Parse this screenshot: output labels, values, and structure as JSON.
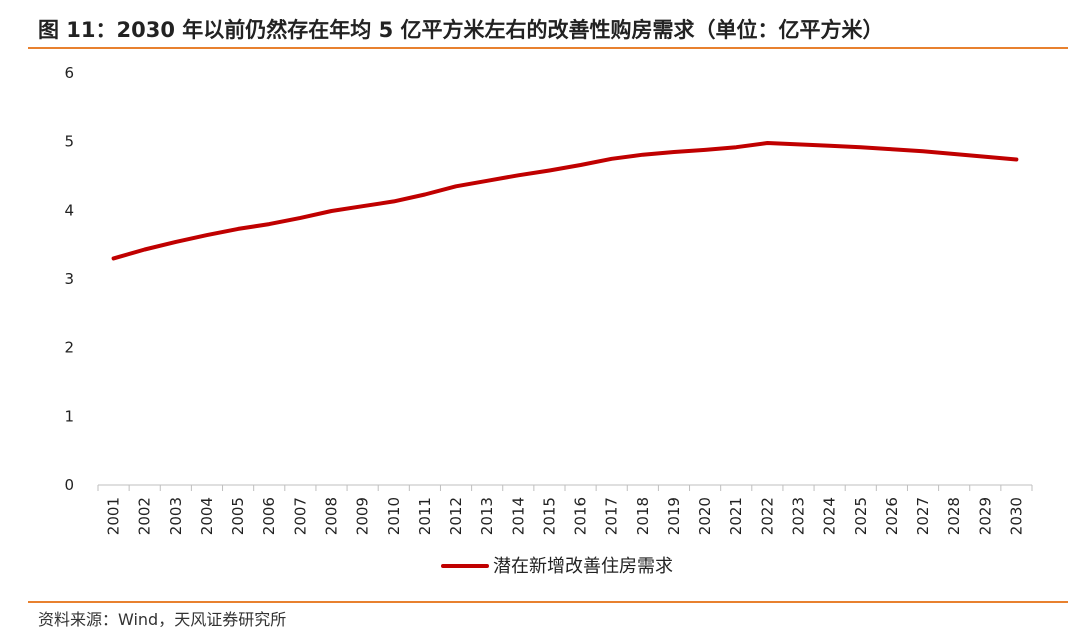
{
  "header": {
    "title": "图 11：2030 年以前仍然存在年均 5 亿平方米左右的改善性购房需求（单位：亿平方米）"
  },
  "footer": {
    "source": "资料来源：Wind，天风证券研究所"
  },
  "colors": {
    "rule": "#E8812F",
    "line": "#C00000",
    "axis": "#BFBFBF"
  },
  "chart_data": {
    "type": "line",
    "title": "",
    "xlabel": "",
    "ylabel": "",
    "ylim": [
      0,
      6
    ],
    "yticks": [
      "0",
      "1",
      "2",
      "3",
      "4",
      "5",
      "6"
    ],
    "grid": false,
    "legend_position": "bottom-center",
    "categories": [
      "2001",
      "2002",
      "2003",
      "2004",
      "2005",
      "2006",
      "2007",
      "2008",
      "2009",
      "2010",
      "2011",
      "2012",
      "2013",
      "2014",
      "2015",
      "2016",
      "2017",
      "2018",
      "2019",
      "2020",
      "2021",
      "2022",
      "2023",
      "2024",
      "2025",
      "2026",
      "2027",
      "2028",
      "2029",
      "2030"
    ],
    "series": [
      {
        "name": "潜在新增改善住房需求",
        "values": [
          3.3,
          3.43,
          3.54,
          3.64,
          3.73,
          3.8,
          3.89,
          3.99,
          4.06,
          4.13,
          4.23,
          4.35,
          4.43,
          4.51,
          4.58,
          4.66,
          4.75,
          4.81,
          4.85,
          4.88,
          4.92,
          4.98,
          4.96,
          4.94,
          4.92,
          4.89,
          4.86,
          4.82,
          4.78,
          4.74
        ]
      }
    ]
  }
}
